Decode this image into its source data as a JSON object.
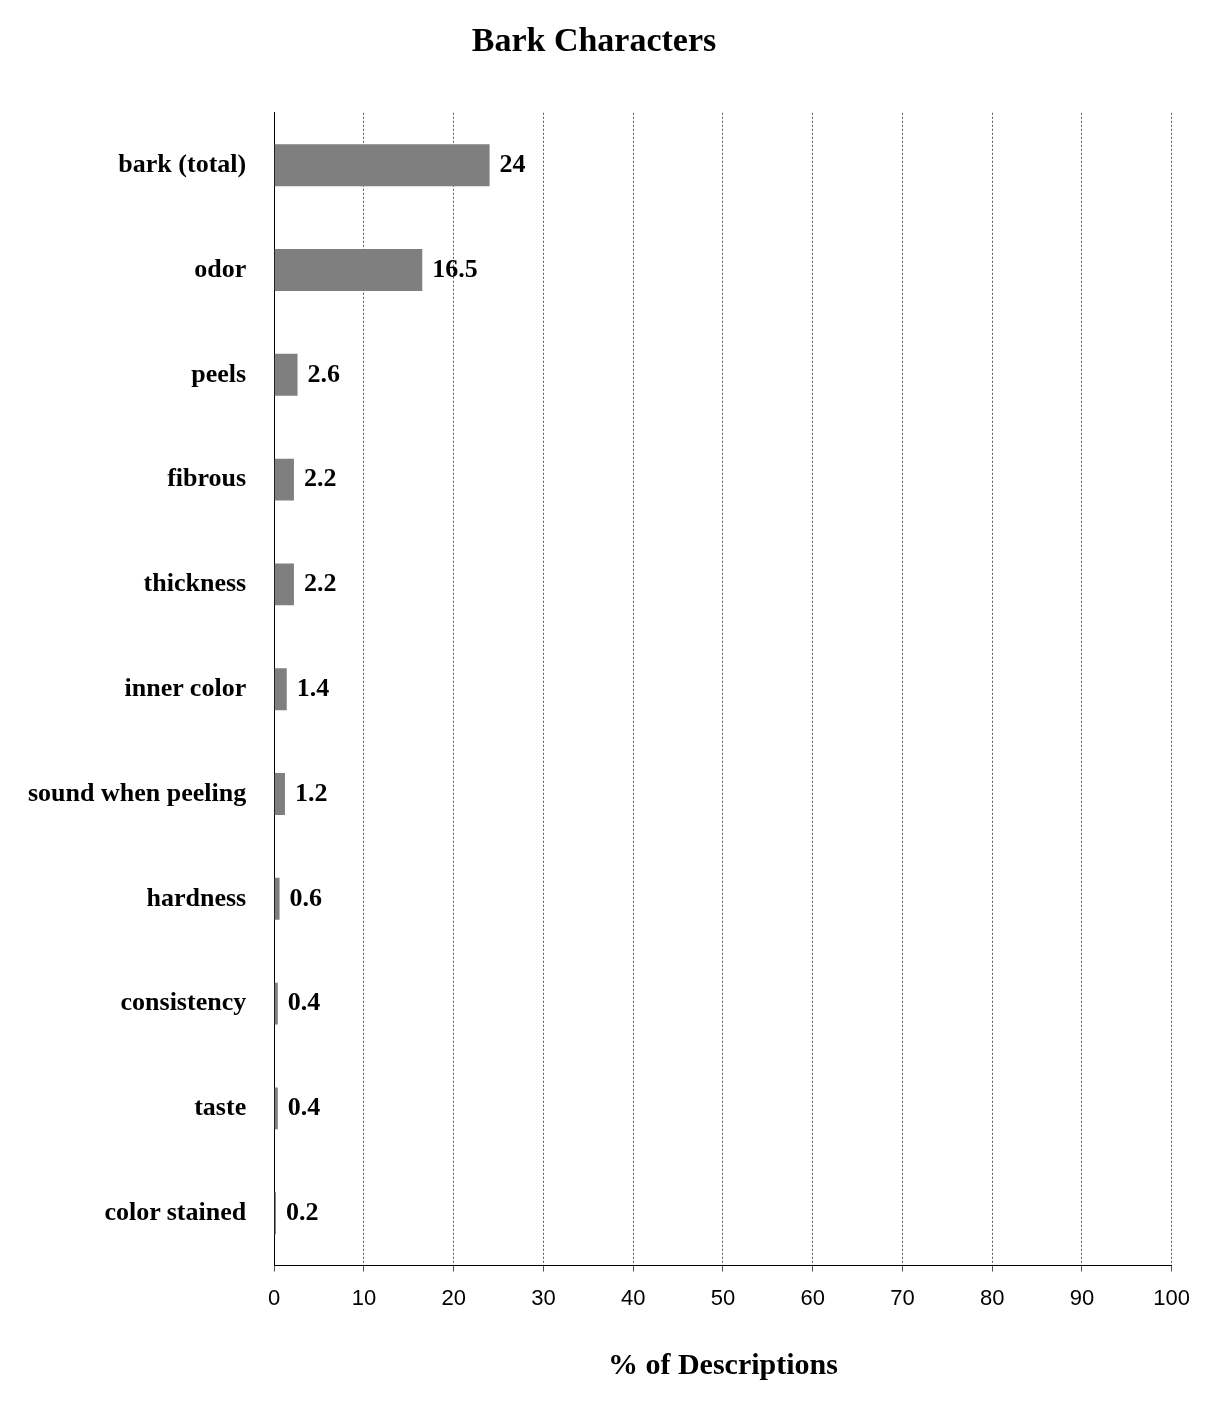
{
  "chart_data": {
    "type": "bar",
    "orientation": "horizontal",
    "title": "Bark Characters",
    "xlabel": "% of Descriptions",
    "categories": [
      "bark (total)",
      "odor",
      "peels",
      "fibrous",
      "thickness",
      "inner color",
      "sound when peeling",
      "hardness",
      "consistency",
      "taste",
      "color stained"
    ],
    "values": [
      24,
      16.5,
      2.6,
      2.2,
      2.2,
      1.4,
      1.2,
      0.6,
      0.4,
      0.4,
      0.2
    ],
    "color": "#7f7f7f",
    "xlim": [
      0,
      100
    ],
    "xticks": [
      0,
      10,
      20,
      30,
      40,
      50,
      60,
      70,
      80,
      90,
      100
    ],
    "grid": "x",
    "data_labels": true,
    "legend": false
  }
}
